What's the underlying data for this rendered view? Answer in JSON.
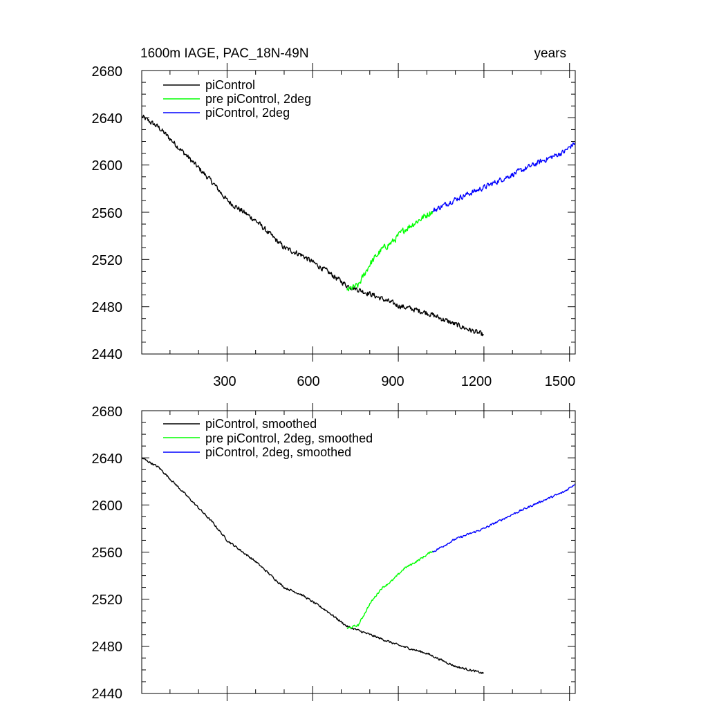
{
  "chart_data": [
    {
      "type": "line",
      "title_left": "1600m IAGE, PAC_18N-49N",
      "title_right": "years",
      "xlim": [
        1,
        1520
      ],
      "ylim": [
        2440,
        2680
      ],
      "xticks": [
        300,
        600,
        900,
        1200,
        1500
      ],
      "xtick_labels": [
        "300",
        "600",
        "900",
        "1200",
        "1500"
      ],
      "yticks": [
        2440,
        2480,
        2520,
        2560,
        2600,
        2640,
        2680
      ],
      "ytick_labels": [
        "2440",
        "2480",
        "2520",
        "2560",
        "2600",
        "2640",
        "2680"
      ],
      "legend": [
        "piControl",
        "pre piControl, 2deg",
        "piControl, 2deg"
      ],
      "series": [
        {
          "name": "piControl",
          "color": "#000000",
          "noise": 2.0,
          "points": [
            [
              1,
              2641
            ],
            [
              60,
              2632
            ],
            [
              150,
              2610
            ],
            [
              250,
              2585
            ],
            [
              300,
              2570
            ],
            [
              400,
              2553
            ],
            [
              500,
              2530
            ],
            [
              560,
              2524
            ],
            [
              650,
              2510
            ],
            [
              720,
              2498
            ],
            [
              800,
              2491
            ],
            [
              900,
              2481
            ],
            [
              1000,
              2475
            ],
            [
              1100,
              2465
            ],
            [
              1200,
              2456
            ]
          ]
        },
        {
          "name": "pre piControl, 2deg",
          "color": "#00ff00",
          "noise": 2.5,
          "points": [
            [
              720,
              2494
            ],
            [
              760,
              2498
            ],
            [
              800,
              2516
            ],
            [
              840,
              2528
            ],
            [
              880,
              2535
            ],
            [
              920,
              2545
            ],
            [
              970,
              2553
            ],
            [
              1020,
              2561
            ]
          ]
        },
        {
          "name": "piControl, 2deg",
          "color": "#0000ff",
          "noise": 2.0,
          "points": [
            [
              1020,
              2561
            ],
            [
              1100,
              2571
            ],
            [
              1200,
              2581
            ],
            [
              1300,
              2592
            ],
            [
              1400,
              2603
            ],
            [
              1480,
              2611
            ],
            [
              1520,
              2619
            ]
          ]
        }
      ]
    },
    {
      "type": "line",
      "xlim": [
        1,
        1520
      ],
      "ylim": [
        2440,
        2680
      ],
      "xticks": [
        300,
        600,
        900,
        1200,
        1500
      ],
      "yticks": [
        2440,
        2480,
        2520,
        2560,
        2600,
        2640,
        2680
      ],
      "ytick_labels": [
        "2440",
        "2480",
        "2520",
        "2560",
        "2600",
        "2640",
        "2680"
      ],
      "legend": [
        "piControl, smoothed",
        "pre piControl, 2deg, smoothed",
        "piControl, 2deg, smoothed"
      ],
      "series": [
        {
          "name": "piControl, smoothed",
          "color": "#000000",
          "noise": 0.8,
          "points": [
            [
              1,
              2640
            ],
            [
              60,
              2632
            ],
            [
              150,
              2610
            ],
            [
              250,
              2585
            ],
            [
              300,
              2570
            ],
            [
              400,
              2552
            ],
            [
              500,
              2530
            ],
            [
              560,
              2524
            ],
            [
              650,
              2510
            ],
            [
              720,
              2497
            ],
            [
              800,
              2490
            ],
            [
              900,
              2481
            ],
            [
              1000,
              2474
            ],
            [
              1100,
              2463
            ],
            [
              1200,
              2457
            ]
          ]
        },
        {
          "name": "pre piControl, 2deg, smoothed",
          "color": "#00ff00",
          "noise": 0.8,
          "points": [
            [
              720,
              2495
            ],
            [
              760,
              2498
            ],
            [
              800,
              2516
            ],
            [
              840,
              2529
            ],
            [
              880,
              2536
            ],
            [
              920,
              2546
            ],
            [
              970,
              2553
            ],
            [
              1020,
              2561
            ]
          ]
        },
        {
          "name": "piControl, 2deg, smoothed",
          "color": "#0000ff",
          "noise": 0.8,
          "points": [
            [
              1020,
              2560
            ],
            [
              1100,
              2571
            ],
            [
              1200,
              2580
            ],
            [
              1300,
              2592
            ],
            [
              1400,
              2603
            ],
            [
              1480,
              2611
            ],
            [
              1520,
              2618
            ]
          ]
        }
      ]
    }
  ]
}
